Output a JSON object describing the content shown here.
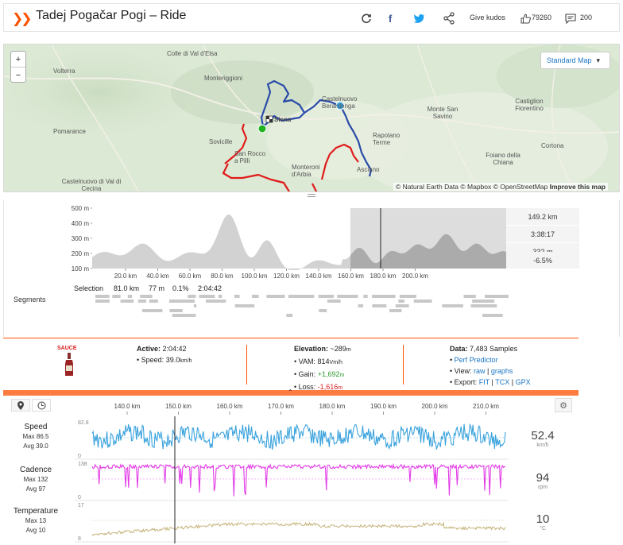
{
  "header": {
    "title": "Tadej Pogačar Pogi – Ride",
    "give_kudos": "Give kudos",
    "kudos_count": "79260",
    "comment_count": "200"
  },
  "map": {
    "zoom_in": "+",
    "zoom_out": "−",
    "style_label": "Standard Map",
    "attribution": "© Natural Earth Data © Mapbox © OpenStreetMap",
    "improve": "Improve this map",
    "towns": [
      "Colle di Val d'Elsa",
      "Volterra",
      "Monteriggioni",
      "Castelnuovo Berardenga",
      "Monte San Savino",
      "Castiglion Fiorentino",
      "Pomarance",
      "Sovicille",
      "San Rocco a Pilli",
      "Rapolano Terme",
      "Monteroni d'Arbia",
      "Asciano",
      "Foiano della Chiana",
      "Cortona",
      "Castelnuovo di Val di Cecina",
      "Siena"
    ]
  },
  "elevation": {
    "y_ticks": [
      "500 m",
      "400 m",
      "300 m",
      "200 m",
      "100 m"
    ],
    "x_ticks": [
      "20.0 km",
      "40.0 km",
      "60.0 km",
      "80.0 km",
      "100.0 km",
      "120.0 km",
      "140.0 km",
      "160.0 km",
      "180.0 km",
      "200.0 km"
    ],
    "stats": [
      "149.2 km",
      "3:38:17",
      "332 m",
      "-6.5%"
    ],
    "selection_label": "Selection",
    "selection_values": [
      "81.0 km",
      "77 m",
      "0.1%",
      "2:04:42"
    ],
    "segments_label": "Segments"
  },
  "info": {
    "sauce_label": "SAUCE",
    "active_label": "Active:",
    "active_value": "2:04:42",
    "speed_label": "Speed:",
    "speed_value": "39.0",
    "speed_unit": "km/h",
    "elevation_label": "Elevation:",
    "elevation_value": "~289",
    "elevation_unit": "m",
    "vam_label": "VAM:",
    "vam_value": "814",
    "vam_unit": "Vm/h",
    "gain_label": "Gain:",
    "gain_value": "+1,692",
    "gain_unit": "m",
    "loss_label": "Loss:",
    "loss_value": "-1,616",
    "loss_unit": "m",
    "data_label": "Data:",
    "data_value": "7,483 Samples",
    "perf_predictor": "Perf Predictor",
    "view_label": "View:",
    "view_raw": "raw",
    "view_graphs": "graphs",
    "export_label": "Export:",
    "export_fit": "FIT",
    "export_tcx": "TCX",
    "export_gpx": "GPX"
  },
  "streams": {
    "x_ticks": [
      "140.0 km",
      "150.0 km",
      "160.0 km",
      "170.0 km",
      "180.0 km",
      "190.0 km",
      "200.0 km",
      "210.0 km"
    ],
    "speed": {
      "name": "Speed",
      "max": "Max 86.5",
      "avg": "Avg 39.0",
      "top": "82.8",
      "bottom": "0",
      "value": "52.4",
      "unit": "km/h",
      "color": "#3ba3dd"
    },
    "cadence": {
      "name": "Cadence",
      "max": "Max 132",
      "avg": "Avg 97",
      "top": "138",
      "bottom": "0",
      "value": "94",
      "unit": "rpm",
      "color": "#e23be6"
    },
    "temperature": {
      "name": "Temperature",
      "max": "Max 13",
      "avg": "Avg 10",
      "top": "17",
      "bottom": "8",
      "value": "10",
      "unit": "°C",
      "color": "#c5b27a"
    }
  },
  "colors": {
    "accent": "#fc5200",
    "route_blue": "#2a4ca8",
    "route_red": "#e01b1b",
    "elevation_fill": "#cfcfcf",
    "selection_fill": "#a9a9a9"
  }
}
